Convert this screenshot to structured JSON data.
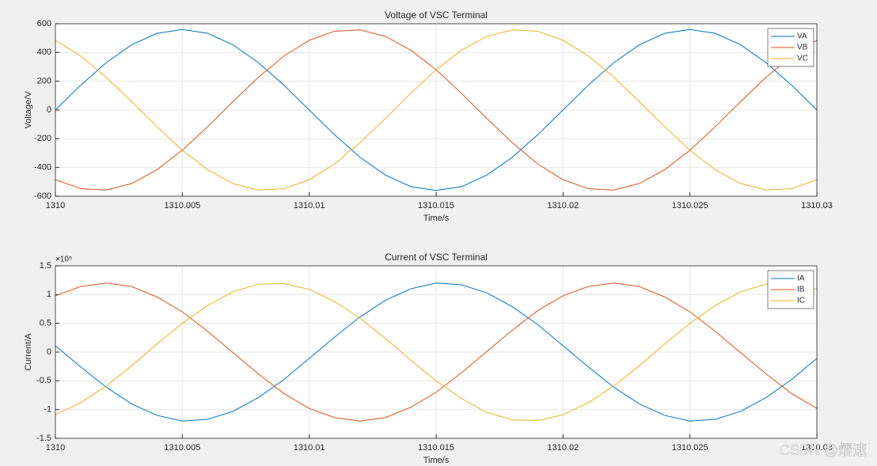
{
  "chart_data": [
    {
      "type": "line",
      "title": "Voltage of VSC Terminal",
      "xlabel": "Time/s",
      "ylabel": "Voltage/V",
      "x": [
        1310,
        1310.001,
        1310.002,
        1310.003,
        1310.004,
        1310.005,
        1310.006,
        1310.007,
        1310.008,
        1310.009,
        1310.01,
        1310.011,
        1310.012,
        1310.013,
        1310.014,
        1310.015,
        1310.016,
        1310.017,
        1310.018,
        1310.019,
        1310.02,
        1310.021,
        1310.022,
        1310.023,
        1310.024,
        1310.025,
        1310.026,
        1310.027,
        1310.028,
        1310.029,
        1310.03
      ],
      "series": [
        {
          "name": "VA",
          "color": "#0072BD",
          "values": [
            0,
            173,
            329,
            453,
            533,
            560,
            533,
            453,
            329,
            173,
            0,
            -173,
            -329,
            -453,
            -533,
            -560,
            -533,
            -453,
            -329,
            -173,
            0,
            173,
            329,
            453,
            533,
            560,
            533,
            453,
            329,
            173,
            0
          ]
        },
        {
          "name": "VB",
          "color": "#D95319",
          "values": [
            -485,
            -548,
            -557,
            -512,
            -416,
            -280,
            -116,
            59,
            228,
            375,
            485,
            548,
            557,
            512,
            416,
            280,
            116,
            -59,
            -228,
            -375,
            -485,
            -548,
            -557,
            -512,
            -416,
            -280,
            -116,
            59,
            228,
            375,
            485
          ]
        },
        {
          "name": "VC",
          "color": "#EDB120",
          "values": [
            485,
            375,
            228,
            59,
            -116,
            -280,
            -416,
            -512,
            -557,
            -548,
            -485,
            -375,
            -228,
            -59,
            116,
            280,
            416,
            512,
            557,
            548,
            485,
            375,
            228,
            59,
            -116,
            -280,
            -416,
            -512,
            -557,
            -548,
            -485
          ]
        }
      ],
      "xlim": [
        1310,
        1310.03
      ],
      "xticks": [
        1310,
        1310.005,
        1310.01,
        1310.015,
        1310.02,
        1310.025,
        1310.03
      ],
      "ylim": [
        -600,
        600
      ],
      "yticks": [
        -600,
        -400,
        -200,
        0,
        200,
        400,
        600
      ],
      "grid": true,
      "legend": "upper right"
    },
    {
      "type": "line",
      "title": "Current of VSC Terminal",
      "xlabel": "Time/s",
      "ylabel": "Current/A",
      "y_scale_label": "×10⁵",
      "x": [
        1310,
        1310.001,
        1310.002,
        1310.003,
        1310.004,
        1310.005,
        1310.006,
        1310.007,
        1310.008,
        1310.009,
        1310.01,
        1310.011,
        1310.012,
        1310.013,
        1310.014,
        1310.015,
        1310.016,
        1310.017,
        1310.018,
        1310.019,
        1310.02,
        1310.021,
        1310.022,
        1310.023,
        1310.024,
        1310.025,
        1310.026,
        1310.027,
        1310.028,
        1310.029,
        1310.03
      ],
      "series": [
        {
          "name": "IA",
          "color": "#0072BD",
          "values": [
            11000,
            -26000,
            -61000,
            -90000,
            -110000,
            -120000,
            -117000,
            -103000,
            -79000,
            -48000,
            -11000,
            26000,
            61000,
            90000,
            110000,
            120000,
            117000,
            103000,
            79000,
            48000,
            11000,
            -26000,
            -61000,
            -90000,
            -110000,
            -120000,
            -117000,
            -103000,
            -79000,
            -48000,
            -11000
          ]
        },
        {
          "name": "IB",
          "color": "#D95319",
          "values": [
            98000,
            114000,
            120000,
            114000,
            96000,
            70000,
            36000,
            -1000,
            -38000,
            -72000,
            -98000,
            -114000,
            -120000,
            -114000,
            -96000,
            -70000,
            -36000,
            1000,
            38000,
            72000,
            98000,
            114000,
            120000,
            114000,
            96000,
            70000,
            36000,
            -1000,
            -38000,
            -72000,
            -98000
          ]
        },
        {
          "name": "IC",
          "color": "#EDB120",
          "values": [
            -109000,
            -88000,
            -59000,
            -24000,
            14000,
            50000,
            81000,
            105000,
            118000,
            119000,
            109000,
            88000,
            59000,
            24000,
            -14000,
            -50000,
            -81000,
            -105000,
            -118000,
            -119000,
            -109000,
            -88000,
            -59000,
            -24000,
            14000,
            50000,
            81000,
            105000,
            118000,
            119000,
            109000
          ]
        }
      ],
      "xlim": [
        1310,
        1310.03
      ],
      "xticks": [
        1310,
        1310.005,
        1310.01,
        1310.015,
        1310.02,
        1310.025,
        1310.03
      ],
      "ylim": [
        -150000,
        150000
      ],
      "yticks": [
        {
          "value": -150000,
          "label": "-1.5"
        },
        {
          "value": -100000,
          "label": "-1"
        },
        {
          "value": -50000,
          "label": "-0.5"
        },
        0,
        {
          "value": 50000,
          "label": "0.5"
        },
        {
          "value": 100000,
          "label": "1"
        },
        {
          "value": 150000,
          "label": "1.5"
        }
      ],
      "grid": true,
      "legend": "upper right"
    }
  ],
  "watermark": "CSDN @熠速"
}
